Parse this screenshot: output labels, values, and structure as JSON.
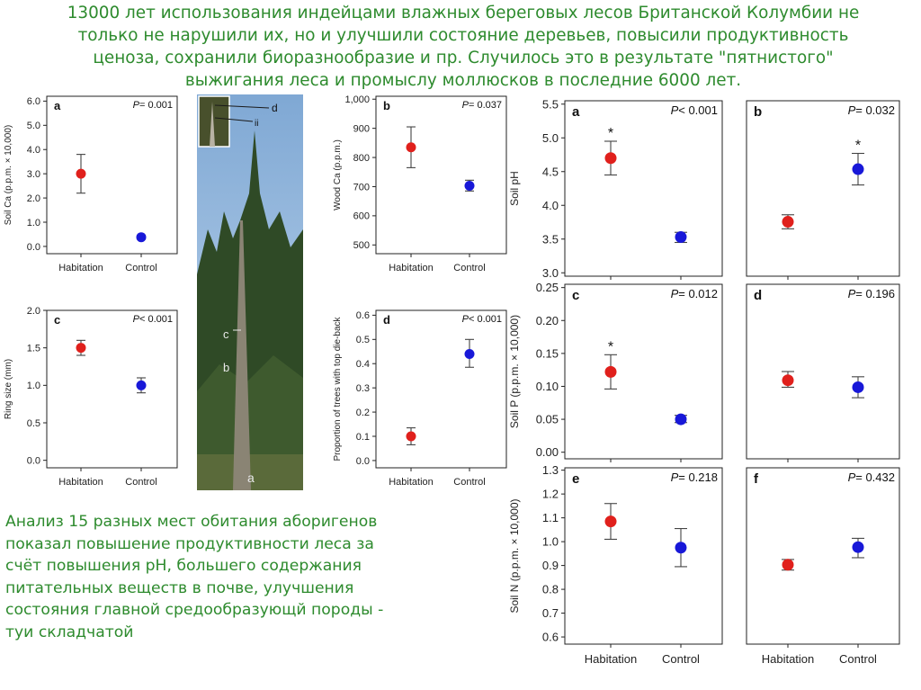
{
  "title_lines": [
    "13000 лет использования индейцами влажных береговых лесов Британской Колумбии не",
    "только не нарушили их, но и улучшили состояние деревьев, повысили продуктивность",
    "ценоза, сохранили биоразнообразие и пр. Случилось это в результате \"пятнистого\"",
    "выжигания леса и промыслу моллюсков в последние 6000 лет."
  ],
  "caption_lines": [
    "Анализ 15 разных мест обитания аборигенов",
    "показал повышение продуктивности леса за",
    "счёт повышения pH, большего содержания",
    "питательных веществ в почве, улучшения",
    "состояния главной средообразующй породы -",
    "туи складчатой"
  ],
  "photo": {
    "labels": [
      "a",
      "b",
      "c",
      "d",
      "ii"
    ],
    "colors": {
      "sky": "#8fb4d8",
      "forest": "#2f4a26",
      "trunk": "#8a8474"
    }
  },
  "colors": {
    "habitation": "#e0201c",
    "control": "#1818d8",
    "text": "#2e8b2e"
  },
  "chart_data": [
    {
      "id": "left-a",
      "type": "scatter",
      "panel": "a",
      "p_text": "= 0.001",
      "ylabel": "Soil Ca (p.p.m. × 10,000)",
      "categories": [
        "Habitation",
        "Control"
      ],
      "yticks": [
        "0.0",
        "1.0",
        "2.0",
        "3.0",
        "4.0",
        "5.0",
        "6.0"
      ],
      "ylim": [
        -0.3,
        6.2
      ],
      "values": [
        3.0,
        0.38
      ],
      "err_low": [
        2.2,
        0.3
      ],
      "err_high": [
        3.8,
        0.46
      ],
      "star": [
        false,
        false
      ]
    },
    {
      "id": "left-b",
      "type": "scatter",
      "panel": "b",
      "p_text": "= 0.037",
      "ylabel": "Wood Ca (p.p.m.)",
      "categories": [
        "Habitation",
        "Control"
      ],
      "yticks": [
        "500",
        "600",
        "700",
        "800",
        "900",
        "1,000"
      ],
      "ylim": [
        470,
        1010
      ],
      "values": [
        835,
        703
      ],
      "err_low": [
        765,
        685
      ],
      "err_high": [
        905,
        722
      ],
      "star": [
        false,
        false
      ]
    },
    {
      "id": "left-c",
      "type": "scatter",
      "panel": "c",
      "p_text": "< 0.001",
      "ylabel": "Ring size (mm)",
      "categories": [
        "Habitation",
        "Control"
      ],
      "yticks": [
        "0.0",
        "0.5",
        "1.0",
        "1.5",
        "2.0"
      ],
      "ylim": [
        -0.1,
        2.0
      ],
      "values": [
        1.5,
        1.0
      ],
      "err_low": [
        1.4,
        0.9
      ],
      "err_high": [
        1.6,
        1.1
      ],
      "star": [
        false,
        false
      ]
    },
    {
      "id": "left-d",
      "type": "scatter",
      "panel": "d",
      "p_text": "< 0.001",
      "ylabel": "Proportion of trees with top die-back",
      "categories": [
        "Habitation",
        "Control"
      ],
      "yticks": [
        "0.0",
        "0.1",
        "0.2",
        "0.3",
        "0.4",
        "0.5",
        "0.6"
      ],
      "ylim": [
        -0.03,
        0.62
      ],
      "values": [
        0.1,
        0.44
      ],
      "err_low": [
        0.065,
        0.385
      ],
      "err_high": [
        0.135,
        0.5
      ],
      "star": [
        false,
        false
      ]
    },
    {
      "id": "right-a",
      "type": "scatter",
      "panel": "a",
      "p_text": "< 0.001",
      "ylabel": "Soil pH",
      "categories": [
        "Habitation",
        "Control"
      ],
      "yticks": [
        "3.0",
        "3.5",
        "4.0",
        "4.5",
        "5.0",
        "5.5"
      ],
      "ylim": [
        2.95,
        5.55
      ],
      "values": [
        4.7,
        3.53
      ],
      "err_low": [
        4.45,
        3.45
      ],
      "err_high": [
        4.95,
        3.6
      ],
      "star": [
        true,
        false
      ]
    },
    {
      "id": "right-b",
      "type": "scatter",
      "panel": "b",
      "p_text": "= 0.032",
      "ylabel": "",
      "categories": [
        "Habitation",
        "Control"
      ],
      "yticks": [],
      "ylim": [
        0,
        1
      ],
      "values": [
        0.31,
        0.61
      ],
      "err_low": [
        0.27,
        0.52
      ],
      "err_high": [
        0.35,
        0.7
      ],
      "star": [
        false,
        true
      ]
    },
    {
      "id": "right-c",
      "type": "scatter",
      "panel": "c",
      "p_text": "= 0.012",
      "ylabel": "Soil P (p.p.m. × 10,000)",
      "categories": [
        "Habitation",
        "Control"
      ],
      "yticks": [
        "0.00",
        "0.05",
        "0.10",
        "0.15",
        "0.20",
        "0.25"
      ],
      "ylim": [
        -0.01,
        0.255
      ],
      "values": [
        0.122,
        0.05
      ],
      "err_low": [
        0.096,
        0.045
      ],
      "err_high": [
        0.148,
        0.056
      ],
      "star": [
        true,
        false
      ]
    },
    {
      "id": "right-d",
      "type": "scatter",
      "panel": "d",
      "p_text": "= 0.196",
      "ylabel": "",
      "categories": [
        "Habitation",
        "Control"
      ],
      "yticks": [],
      "ylim": [
        0,
        1
      ],
      "values": [
        0.45,
        0.41
      ],
      "err_low": [
        0.41,
        0.35
      ],
      "err_high": [
        0.5,
        0.47
      ],
      "star": [
        false,
        false
      ]
    },
    {
      "id": "right-e",
      "type": "scatter",
      "panel": "e",
      "p_text": "= 0.218",
      "ylabel": "Soil N (p.p.m. × 10,000)",
      "categories": [
        "Habitation",
        "Control"
      ],
      "yticks": [
        "0.6",
        "0.7",
        "0.8",
        "0.9",
        "1.0",
        "1.1",
        "1.2",
        "1.3"
      ],
      "ylim": [
        0.57,
        1.31
      ],
      "values": [
        1.085,
        0.975
      ],
      "err_low": [
        1.01,
        0.895
      ],
      "err_high": [
        1.16,
        1.055
      ],
      "star": [
        false,
        false
      ]
    },
    {
      "id": "right-f",
      "type": "scatter",
      "panel": "f",
      "p_text": "= 0.432",
      "ylabel": "",
      "categories": [
        "Habitation",
        "Control"
      ],
      "yticks": [],
      "ylim": [
        0,
        1
      ],
      "values": [
        0.45,
        0.55
      ],
      "err_low": [
        0.42,
        0.49
      ],
      "err_high": [
        0.48,
        0.6
      ],
      "star": [
        false,
        false
      ]
    }
  ]
}
